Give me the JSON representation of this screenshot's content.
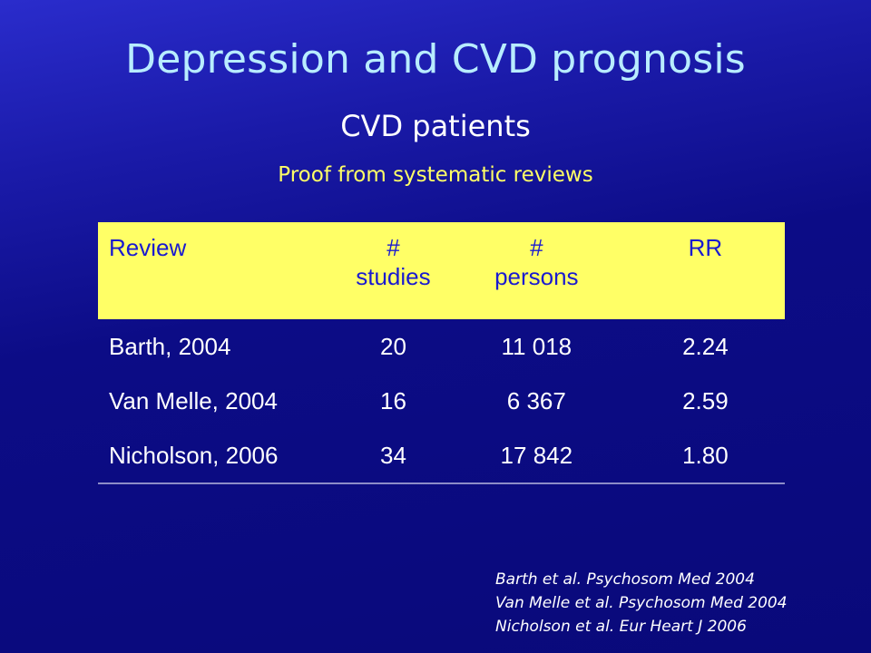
{
  "slide": {
    "title": "Depression and CVD prognosis",
    "subtitle": "CVD patients",
    "proof_line": "Proof from systematic reviews"
  },
  "table": {
    "headers": {
      "review": "Review",
      "studies_symbol": "#",
      "studies_label": "studies",
      "persons_symbol": "#",
      "persons_label": "persons",
      "rr": "RR"
    },
    "rows": [
      {
        "review": "Barth, 2004",
        "studies": "20",
        "persons": "11 018",
        "rr": "2.24"
      },
      {
        "review": "Van Melle, 2004",
        "studies": "16",
        "persons": "6 367",
        "rr": "2.59"
      },
      {
        "review": "Nicholson, 2006",
        "studies": "34",
        "persons": "17 842",
        "rr": "1.80"
      }
    ]
  },
  "references": [
    "Barth et al. Psychosom Med 2004",
    "Van Melle et al. Psychosom Med 2004",
    "Nicholson et al. Eur Heart J 2006"
  ],
  "colors": {
    "background": "#0c0c86",
    "title": "#b8ecff",
    "proof_line": "#ffff66",
    "table_header_bg": "#ffff66",
    "table_header_text": "#1a1ad0"
  }
}
